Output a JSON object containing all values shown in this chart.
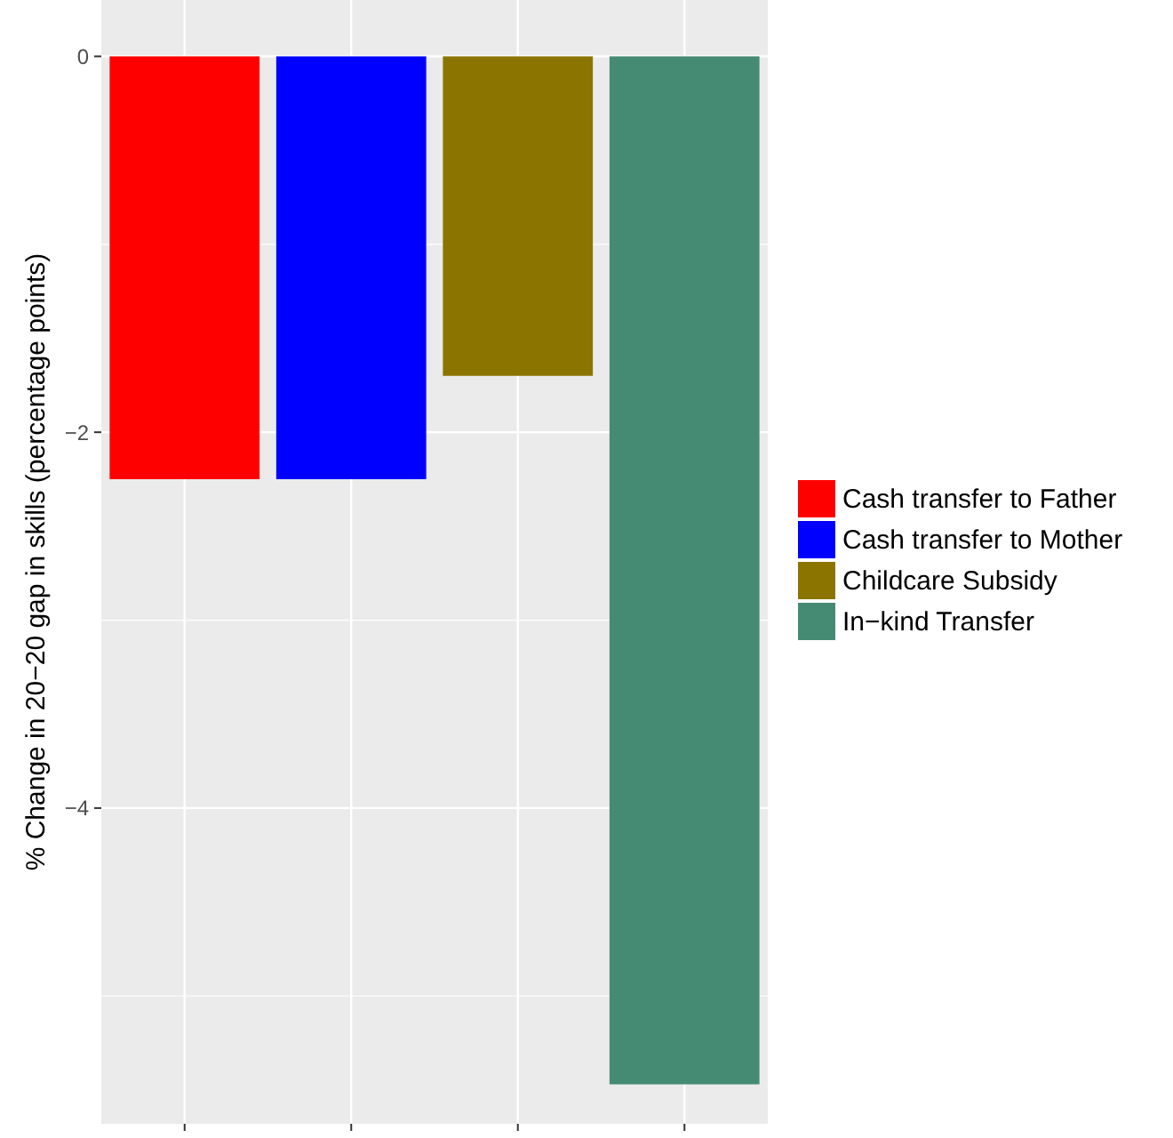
{
  "chart_data": {
    "type": "bar",
    "ylabel": "% Change in 20−20 gap in skills (percentage points)",
    "categories": [
      null,
      null,
      null,
      null
    ],
    "series": [
      {
        "name": "Cash transfer to Father",
        "color": "#ff0000",
        "values": [
          -2.25,
          null,
          null,
          null
        ]
      },
      {
        "name": "Cash transfer to Mother",
        "color": "#0000ff",
        "values": [
          null,
          -2.25,
          null,
          null
        ]
      },
      {
        "name": "Childcare Subsidy",
        "color": "#8b7500",
        "values": [
          null,
          null,
          -1.7,
          null
        ]
      },
      {
        "name": "In−kind Transfer",
        "color": "#458b74",
        "values": [
          null,
          null,
          null,
          -5.47
        ]
      }
    ],
    "ylim": [
      -5.68,
      0.3
    ],
    "yticks": [
      0,
      {
        "value": -2,
        "label": "−2"
      },
      {
        "value": -4,
        "label": "−4"
      }
    ],
    "grid": true,
    "legend": "right"
  }
}
